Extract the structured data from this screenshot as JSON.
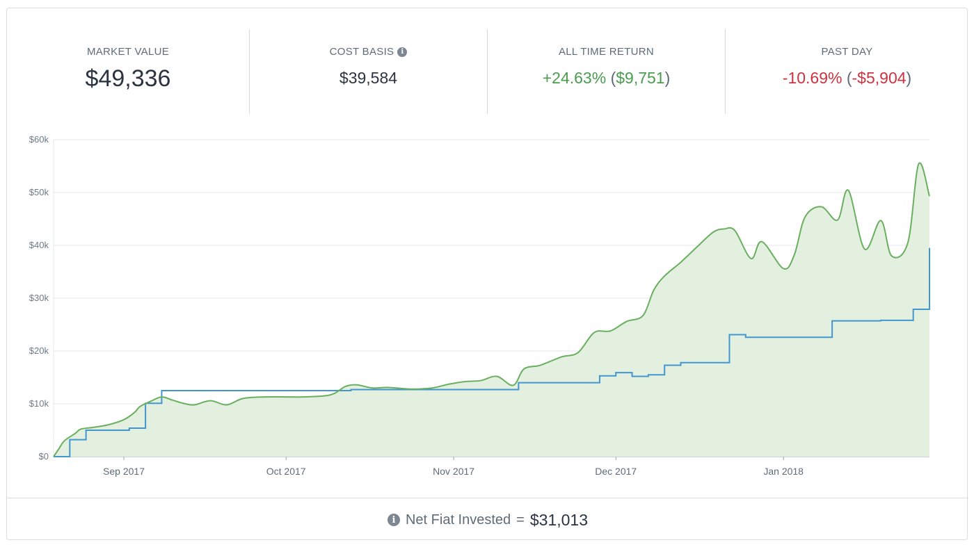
{
  "stats": {
    "market_value": {
      "label": "MARKET VALUE",
      "value": "$49,336"
    },
    "cost_basis": {
      "label": "COST BASIS",
      "value": "$39,584",
      "icon": "info-icon"
    },
    "all_time_return": {
      "label": "ALL TIME RETURN",
      "percent": "+24.63%",
      "open": "(",
      "amount": "$9,751",
      "close": ")"
    },
    "past_day": {
      "label": "PAST DAY",
      "percent": "-10.69%",
      "open": "(",
      "amount": "-$5,904",
      "close": ")"
    }
  },
  "colors": {
    "positive": "#4a9c4e",
    "negative": "#cc3340",
    "market_line": "#6aaf5f",
    "market_fill": "#e3f0e0",
    "cost_line": "#4296cf",
    "grid": "#e5e7ea",
    "text": "#2b3440",
    "muted": "#5f6b77"
  },
  "chart_data": {
    "type": "line",
    "y_ticks": [
      "$0",
      "$10k",
      "$20k",
      "$30k",
      "$40k",
      "$50k",
      "$60k"
    ],
    "x_ticks": [
      "Sep 2017",
      "Oct 2017",
      "Nov 2017",
      "Dec 2017",
      "Jan 2018"
    ],
    "ylim": [
      0,
      60000
    ],
    "grid": true,
    "series": [
      {
        "role": "market_value",
        "style": "smooth-area",
        "points": [
          [
            "2017-08-19",
            0
          ],
          [
            "2017-08-20",
            1500
          ],
          [
            "2017-08-21",
            3000
          ],
          [
            "2017-08-23",
            4400
          ],
          [
            "2017-08-24",
            5200
          ],
          [
            "2017-08-26",
            5500
          ],
          [
            "2017-08-29",
            6000
          ],
          [
            "2017-09-01",
            7000
          ],
          [
            "2017-09-03",
            8400
          ],
          [
            "2017-09-04",
            9500
          ],
          [
            "2017-09-06",
            10500
          ],
          [
            "2017-09-08",
            11300
          ],
          [
            "2017-09-10",
            10700
          ],
          [
            "2017-09-12",
            10100
          ],
          [
            "2017-09-14",
            9800
          ],
          [
            "2017-09-17",
            10600
          ],
          [
            "2017-09-20",
            9800
          ],
          [
            "2017-09-23",
            11000
          ],
          [
            "2017-09-27",
            11300
          ],
          [
            "2017-10-01",
            11300
          ],
          [
            "2017-10-04",
            11300
          ],
          [
            "2017-10-08",
            11500
          ],
          [
            "2017-10-10",
            12000
          ],
          [
            "2017-10-12",
            13300
          ],
          [
            "2017-10-14",
            13600
          ],
          [
            "2017-10-17",
            13000
          ],
          [
            "2017-10-20",
            13100
          ],
          [
            "2017-10-24",
            12800
          ],
          [
            "2017-10-28",
            13000
          ],
          [
            "2017-10-31",
            13700
          ],
          [
            "2017-11-03",
            14200
          ],
          [
            "2017-11-06",
            14400
          ],
          [
            "2017-11-09",
            15200
          ],
          [
            "2017-11-12",
            13500
          ],
          [
            "2017-11-14",
            16600
          ],
          [
            "2017-11-17",
            17300
          ],
          [
            "2017-11-21",
            18900
          ],
          [
            "2017-11-24",
            19700
          ],
          [
            "2017-11-27",
            23500
          ],
          [
            "2017-11-30",
            23800
          ],
          [
            "2017-12-03",
            25600
          ],
          [
            "2017-12-06",
            26700
          ],
          [
            "2017-12-08",
            31500
          ],
          [
            "2017-12-10",
            34200
          ],
          [
            "2017-12-13",
            36800
          ],
          [
            "2017-12-16",
            39700
          ],
          [
            "2017-12-19",
            42500
          ],
          [
            "2017-12-21",
            43100
          ],
          [
            "2017-12-23",
            42800
          ],
          [
            "2017-12-26",
            37500
          ],
          [
            "2017-12-28",
            40700
          ],
          [
            "2018-01-01",
            35600
          ],
          [
            "2018-01-03",
            38200
          ],
          [
            "2018-01-05",
            45400
          ],
          [
            "2018-01-08",
            47300
          ],
          [
            "2018-01-11",
            44800
          ],
          [
            "2018-01-13",
            50400
          ],
          [
            "2018-01-16",
            39300
          ],
          [
            "2018-01-19",
            44700
          ],
          [
            "2018-01-21",
            38000
          ],
          [
            "2018-01-24",
            40500
          ],
          [
            "2018-01-26",
            55400
          ],
          [
            "2018-01-28",
            49300
          ]
        ]
      },
      {
        "role": "cost_basis",
        "style": "step",
        "points": [
          [
            "2017-08-19",
            0
          ],
          [
            "2017-08-22",
            0
          ],
          [
            "2017-08-22",
            3200
          ],
          [
            "2017-08-25",
            3200
          ],
          [
            "2017-08-25",
            5000
          ],
          [
            "2017-09-02",
            5000
          ],
          [
            "2017-09-02",
            5400
          ],
          [
            "2017-09-05",
            5400
          ],
          [
            "2017-09-05",
            10100
          ],
          [
            "2017-09-08",
            10100
          ],
          [
            "2017-09-08",
            12500
          ],
          [
            "2017-10-13",
            12500
          ],
          [
            "2017-10-13",
            12700
          ],
          [
            "2017-11-13",
            12700
          ],
          [
            "2017-11-13",
            14000
          ],
          [
            "2017-11-28",
            14000
          ],
          [
            "2017-11-28",
            15300
          ],
          [
            "2017-12-01",
            15300
          ],
          [
            "2017-12-01",
            15900
          ],
          [
            "2017-12-04",
            15900
          ],
          [
            "2017-12-04",
            15200
          ],
          [
            "2017-12-07",
            15200
          ],
          [
            "2017-12-07",
            15500
          ],
          [
            "2017-12-10",
            15500
          ],
          [
            "2017-12-10",
            17300
          ],
          [
            "2017-12-13",
            17300
          ],
          [
            "2017-12-13",
            17800
          ],
          [
            "2017-12-22",
            17800
          ],
          [
            "2017-12-22",
            23100
          ],
          [
            "2017-12-25",
            23100
          ],
          [
            "2017-12-25",
            22600
          ],
          [
            "2018-01-10",
            22600
          ],
          [
            "2018-01-10",
            25700
          ],
          [
            "2018-01-19",
            25700
          ],
          [
            "2018-01-19",
            25800
          ],
          [
            "2018-01-25",
            25800
          ],
          [
            "2018-01-25",
            27900
          ],
          [
            "2018-01-28",
            27900
          ],
          [
            "2018-01-28",
            39500
          ],
          [
            "2018-01-31",
            39500
          ]
        ]
      }
    ]
  },
  "footer": {
    "label": "Net Fiat Invested",
    "equals": "=",
    "value": "$31,013",
    "icon": "info-icon"
  }
}
